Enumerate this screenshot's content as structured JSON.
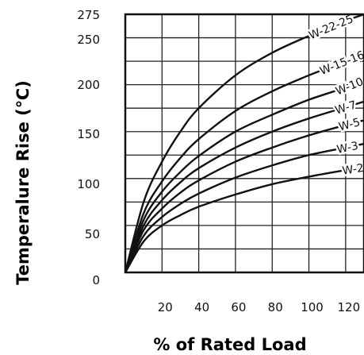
{
  "chart_data": {
    "type": "line",
    "xlabel": "% of Rated Load",
    "ylabel": "Temperalure Rise (℃)",
    "xlim": [
      0,
      130
    ],
    "ylim": [
      0,
      275
    ],
    "x_ticks": [
      "20",
      "40",
      "60",
      "80",
      "100",
      "120"
    ],
    "y_ticks": [
      "0",
      "50",
      "100",
      "150",
      "200",
      "250",
      "275"
    ],
    "grid": true,
    "series": [
      {
        "name": "W-22-25",
        "x": [
          0,
          10,
          20,
          30,
          40,
          60,
          80,
          100,
          120,
          130
        ],
        "y": [
          0,
          75,
          118,
          150,
          175,
          210,
          234,
          252,
          268,
          275
        ]
      },
      {
        "name": "W-15-16",
        "x": [
          0,
          10,
          20,
          30,
          40,
          60,
          80,
          100,
          120,
          130
        ],
        "y": [
          0,
          63,
          97,
          122,
          142,
          172,
          193,
          210,
          225,
          233
        ]
      },
      {
        "name": "W-10",
        "x": [
          0,
          10,
          20,
          30,
          40,
          60,
          80,
          100,
          120,
          130
        ],
        "y": [
          0,
          56,
          86,
          107,
          124,
          150,
          168,
          184,
          197,
          205
        ]
      },
      {
        "name": "W-7",
        "x": [
          0,
          10,
          20,
          30,
          40,
          60,
          80,
          100,
          120,
          130
        ],
        "y": [
          0,
          50,
          77,
          96,
          111,
          133,
          150,
          164,
          176,
          182
        ]
      },
      {
        "name": "W-5",
        "x": [
          0,
          10,
          20,
          30,
          40,
          60,
          80,
          100,
          120,
          130
        ],
        "y": [
          0,
          45,
          68,
          85,
          98,
          118,
          133,
          146,
          157,
          162
        ]
      },
      {
        "name": "W-3",
        "x": [
          0,
          10,
          20,
          30,
          40,
          60,
          80,
          100,
          120,
          130
        ],
        "y": [
          0,
          39,
          59,
          73,
          84,
          101,
          114,
          125,
          133,
          137
        ]
      },
      {
        "name": "W-2",
        "x": [
          0,
          10,
          20,
          30,
          40,
          60,
          80,
          100,
          120,
          130
        ],
        "y": [
          0,
          33,
          50,
          61,
          70,
          83,
          94,
          102,
          109,
          112
        ]
      }
    ]
  }
}
